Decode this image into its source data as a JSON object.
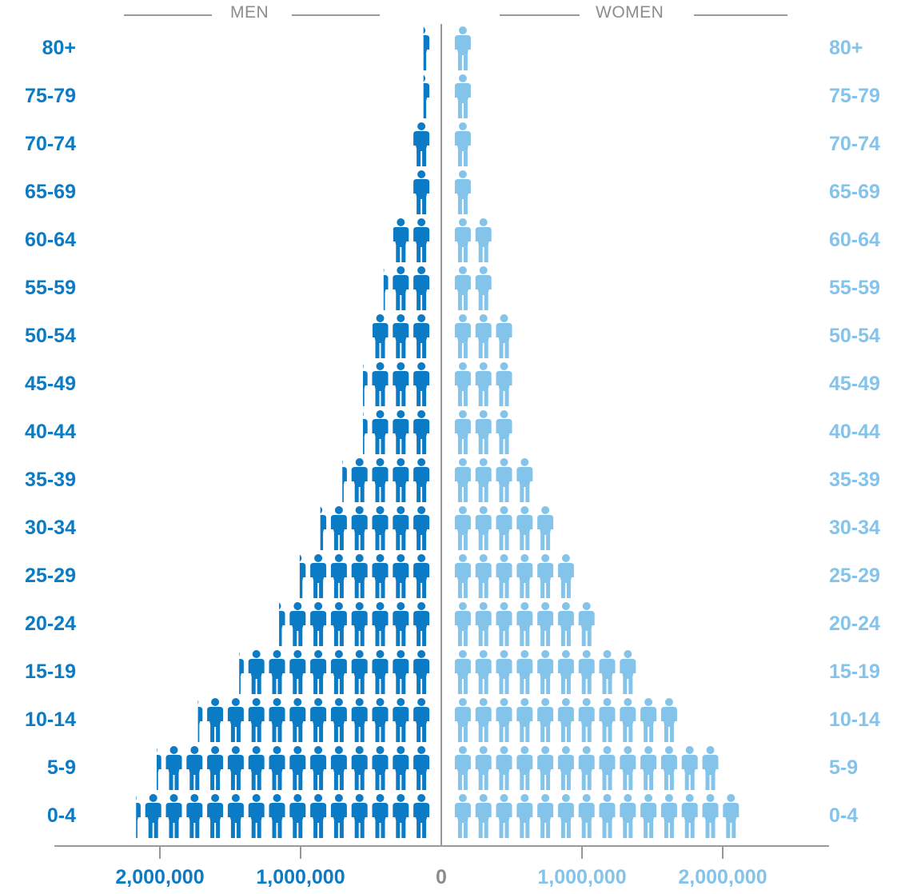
{
  "header": {
    "men_label": "MEN",
    "women_label": "WOMEN"
  },
  "colors": {
    "men": "#0a7bc4",
    "women": "#84c4ea",
    "axis": "#9a9a9a",
    "zero_label": "#8c8c8c"
  },
  "icons": {
    "men": "person-icon",
    "women": "person-icon"
  },
  "chart_data": {
    "type": "bar",
    "orientation": "horizontal-population-pyramid",
    "categories": [
      "80+",
      "75-79",
      "70-74",
      "65-69",
      "60-64",
      "55-59",
      "50-54",
      "45-49",
      "40-44",
      "35-39",
      "30-34",
      "25-29",
      "20-24",
      "15-19",
      "10-14",
      "5-9",
      "0-4"
    ],
    "series": [
      {
        "name": "MEN",
        "values": [
          60000,
          60000,
          150000,
          150000,
          280000,
          350000,
          430000,
          500000,
          500000,
          650000,
          810000,
          960000,
          1110000,
          1400000,
          1700000,
          2000000,
          2150000
        ]
      },
      {
        "name": "WOMEN",
        "values": [
          150000,
          150000,
          150000,
          150000,
          300000,
          300000,
          450000,
          450000,
          450000,
          600000,
          750000,
          900000,
          1050000,
          1350000,
          1650000,
          1950000,
          2100000
        ]
      }
    ],
    "units_per_icon": 150000,
    "x_ticks_left": [
      "2,000,000",
      "1,000,000"
    ],
    "x_tick_zero": "0",
    "x_ticks_right": [
      "1,000,000",
      "2,000,000"
    ],
    "x_tick_values": [
      2000000,
      1000000,
      0,
      1000000,
      2000000
    ],
    "xlim": [
      -2500000,
      2500000
    ],
    "grid": false
  }
}
